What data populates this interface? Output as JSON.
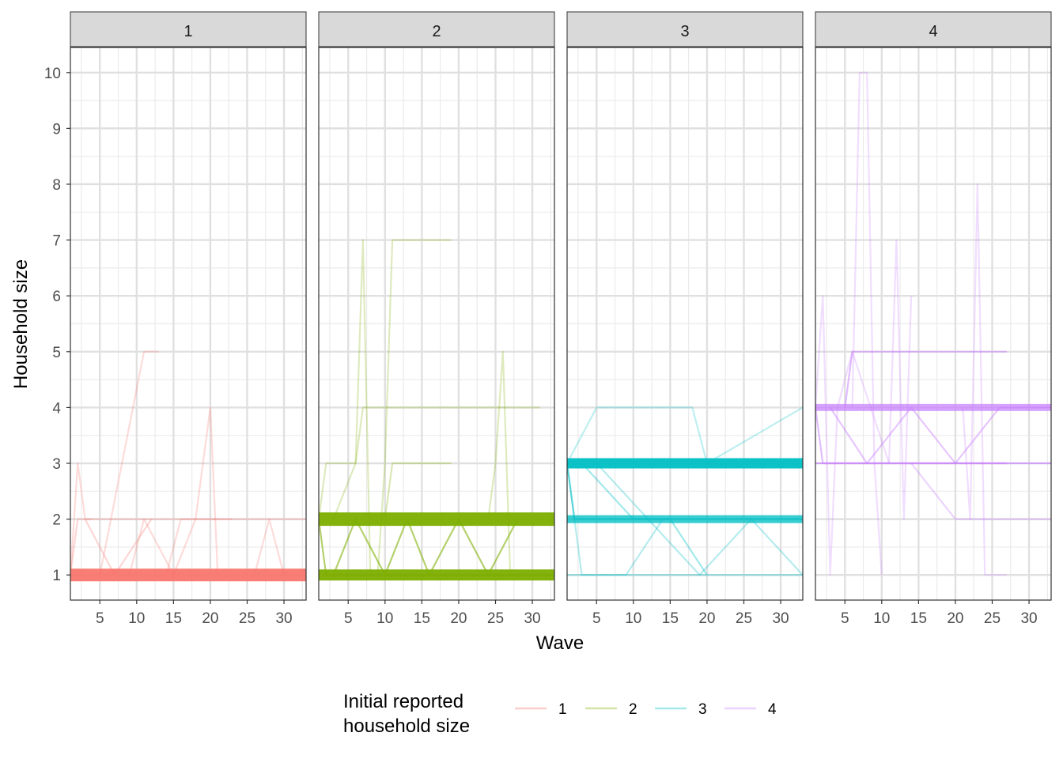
{
  "chart_data": {
    "type": "line",
    "xlabel": "Wave",
    "ylabel": "Household size",
    "xlim": [
      1,
      33
    ],
    "ylim": [
      0.55,
      10.45
    ],
    "x_ticks": [
      5,
      10,
      15,
      20,
      25,
      30
    ],
    "y_ticks": [
      1,
      2,
      3,
      4,
      5,
      6,
      7,
      8,
      9,
      10
    ],
    "grid": true,
    "facets": [
      "1",
      "2",
      "3",
      "4"
    ],
    "legend": {
      "title_line1": "Initial reported",
      "title_line2": "household size",
      "position": "bottom",
      "entries": [
        "1",
        "2",
        "3",
        "4"
      ]
    },
    "colors": {
      "1": "#F8766D",
      "2": "#7CAE00",
      "3": "#00BFC4",
      "4": "#C77CFF"
    },
    "series": [
      {
        "facet": "1",
        "x": [
          1,
          33
        ],
        "y": [
          1,
          1
        ],
        "weight": 28
      },
      {
        "facet": "1",
        "x": [
          1,
          2,
          3,
          4
        ],
        "y": [
          1,
          3,
          2,
          2
        ],
        "weight": 1
      },
      {
        "facet": "1",
        "x": [
          1,
          2,
          13,
          33
        ],
        "y": [
          1,
          2,
          2,
          2
        ],
        "weight": 2
      },
      {
        "facet": "1",
        "x": [
          5,
          8,
          11,
          12,
          13
        ],
        "y": [
          1,
          3,
          5,
          5,
          5
        ],
        "weight": 1
      },
      {
        "facet": "1",
        "x": [
          14,
          16,
          18,
          20,
          21
        ],
        "y": [
          1,
          2,
          2,
          4,
          1
        ],
        "weight": 1
      },
      {
        "facet": "1",
        "x": [
          3,
          7,
          12
        ],
        "y": [
          2,
          1,
          2
        ],
        "weight": 2
      },
      {
        "facet": "1",
        "x": [
          9,
          11,
          15,
          18,
          23
        ],
        "y": [
          1,
          2,
          1,
          2,
          2
        ],
        "weight": 1
      },
      {
        "facet": "1",
        "x": [
          26,
          28,
          30
        ],
        "y": [
          1,
          2,
          1
        ],
        "weight": 1
      },
      {
        "facet": "2",
        "x": [
          1,
          33
        ],
        "y": [
          2,
          2
        ],
        "weight": 30
      },
      {
        "facet": "2",
        "x": [
          1,
          33
        ],
        "y": [
          1,
          1
        ],
        "weight": 24
      },
      {
        "facet": "2",
        "x": [
          1,
          2,
          33
        ],
        "y": [
          2,
          1,
          1
        ],
        "weight": 10
      },
      {
        "facet": "2",
        "x": [
          1,
          2,
          6,
          7,
          8,
          33
        ],
        "y": [
          2,
          3,
          3,
          7,
          1,
          1
        ],
        "weight": 1
      },
      {
        "facet": "2",
        "x": [
          9,
          10,
          11,
          19
        ],
        "y": [
          1,
          3,
          7,
          7
        ],
        "weight": 1
      },
      {
        "facet": "2",
        "x": [
          3,
          6,
          7,
          8,
          31
        ],
        "y": [
          2,
          3,
          4,
          4,
          4
        ],
        "weight": 1
      },
      {
        "facet": "2",
        "x": [
          24,
          25,
          26,
          27
        ],
        "y": [
          2,
          3,
          5,
          1
        ],
        "weight": 1
      },
      {
        "facet": "2",
        "x": [
          10,
          11,
          19
        ],
        "y": [
          2,
          3,
          3
        ],
        "weight": 2
      },
      {
        "facet": "2",
        "x": [
          3,
          6,
          10,
          13,
          16,
          20,
          24,
          28
        ],
        "y": [
          1,
          2,
          1,
          2,
          1,
          2,
          1,
          2
        ],
        "weight": 10
      },
      {
        "facet": "3",
        "x": [
          1,
          33
        ],
        "y": [
          3,
          3
        ],
        "weight": 22
      },
      {
        "facet": "3",
        "x": [
          1,
          33
        ],
        "y": [
          2,
          2
        ],
        "weight": 16
      },
      {
        "facet": "3",
        "x": [
          1,
          33
        ],
        "y": [
          1,
          1
        ],
        "weight": 4
      },
      {
        "facet": "3",
        "x": [
          1,
          2,
          33
        ],
        "y": [
          3,
          2,
          2
        ],
        "weight": 8
      },
      {
        "facet": "3",
        "x": [
          1,
          5,
          12,
          18,
          20,
          33
        ],
        "y": [
          3,
          4,
          4,
          4,
          3,
          4
        ],
        "weight": 1
      },
      {
        "facet": "3",
        "x": [
          3,
          10,
          15,
          20
        ],
        "y": [
          3,
          2,
          2,
          1
        ],
        "weight": 4
      },
      {
        "facet": "3",
        "x": [
          1,
          3,
          9,
          14
        ],
        "y": [
          3,
          1,
          1,
          2
        ],
        "weight": 2
      },
      {
        "facet": "3",
        "x": [
          5,
          12,
          19,
          26,
          33
        ],
        "y": [
          3,
          2,
          1,
          2,
          1
        ],
        "weight": 2
      },
      {
        "facet": "4",
        "x": [
          1,
          33
        ],
        "y": [
          4,
          4
        ],
        "weight": 14
      },
      {
        "facet": "4",
        "x": [
          1,
          33
        ],
        "y": [
          3,
          3
        ],
        "weight": 12
      },
      {
        "facet": "4",
        "x": [
          1,
          2,
          27
        ],
        "y": [
          4,
          3,
          3
        ],
        "weight": 8
      },
      {
        "facet": "4",
        "x": [
          5,
          6,
          27
        ],
        "y": [
          4,
          5,
          5
        ],
        "weight": 8
      },
      {
        "facet": "4",
        "x": [
          1,
          2,
          3,
          4,
          6,
          11
        ],
        "y": [
          4,
          6,
          1,
          4,
          5,
          3
        ],
        "weight": 1
      },
      {
        "facet": "4",
        "x": [
          6,
          7,
          8,
          9,
          10
        ],
        "y": [
          4,
          10,
          10,
          3,
          1
        ],
        "weight": 1
      },
      {
        "facet": "4",
        "x": [
          11,
          12,
          13,
          14
        ],
        "y": [
          3,
          7,
          2,
          6
        ],
        "weight": 1
      },
      {
        "facet": "4",
        "x": [
          21,
          22,
          23,
          24,
          27
        ],
        "y": [
          4,
          2,
          8,
          1,
          1
        ],
        "weight": 1
      },
      {
        "facet": "4",
        "x": [
          14,
          20,
          26,
          33
        ],
        "y": [
          3,
          2,
          2,
          2
        ],
        "weight": 3
      },
      {
        "facet": "4",
        "x": [
          3,
          8,
          14,
          20,
          26,
          33
        ],
        "y": [
          4,
          3,
          4,
          3,
          4,
          4
        ],
        "weight": 6
      }
    ]
  }
}
